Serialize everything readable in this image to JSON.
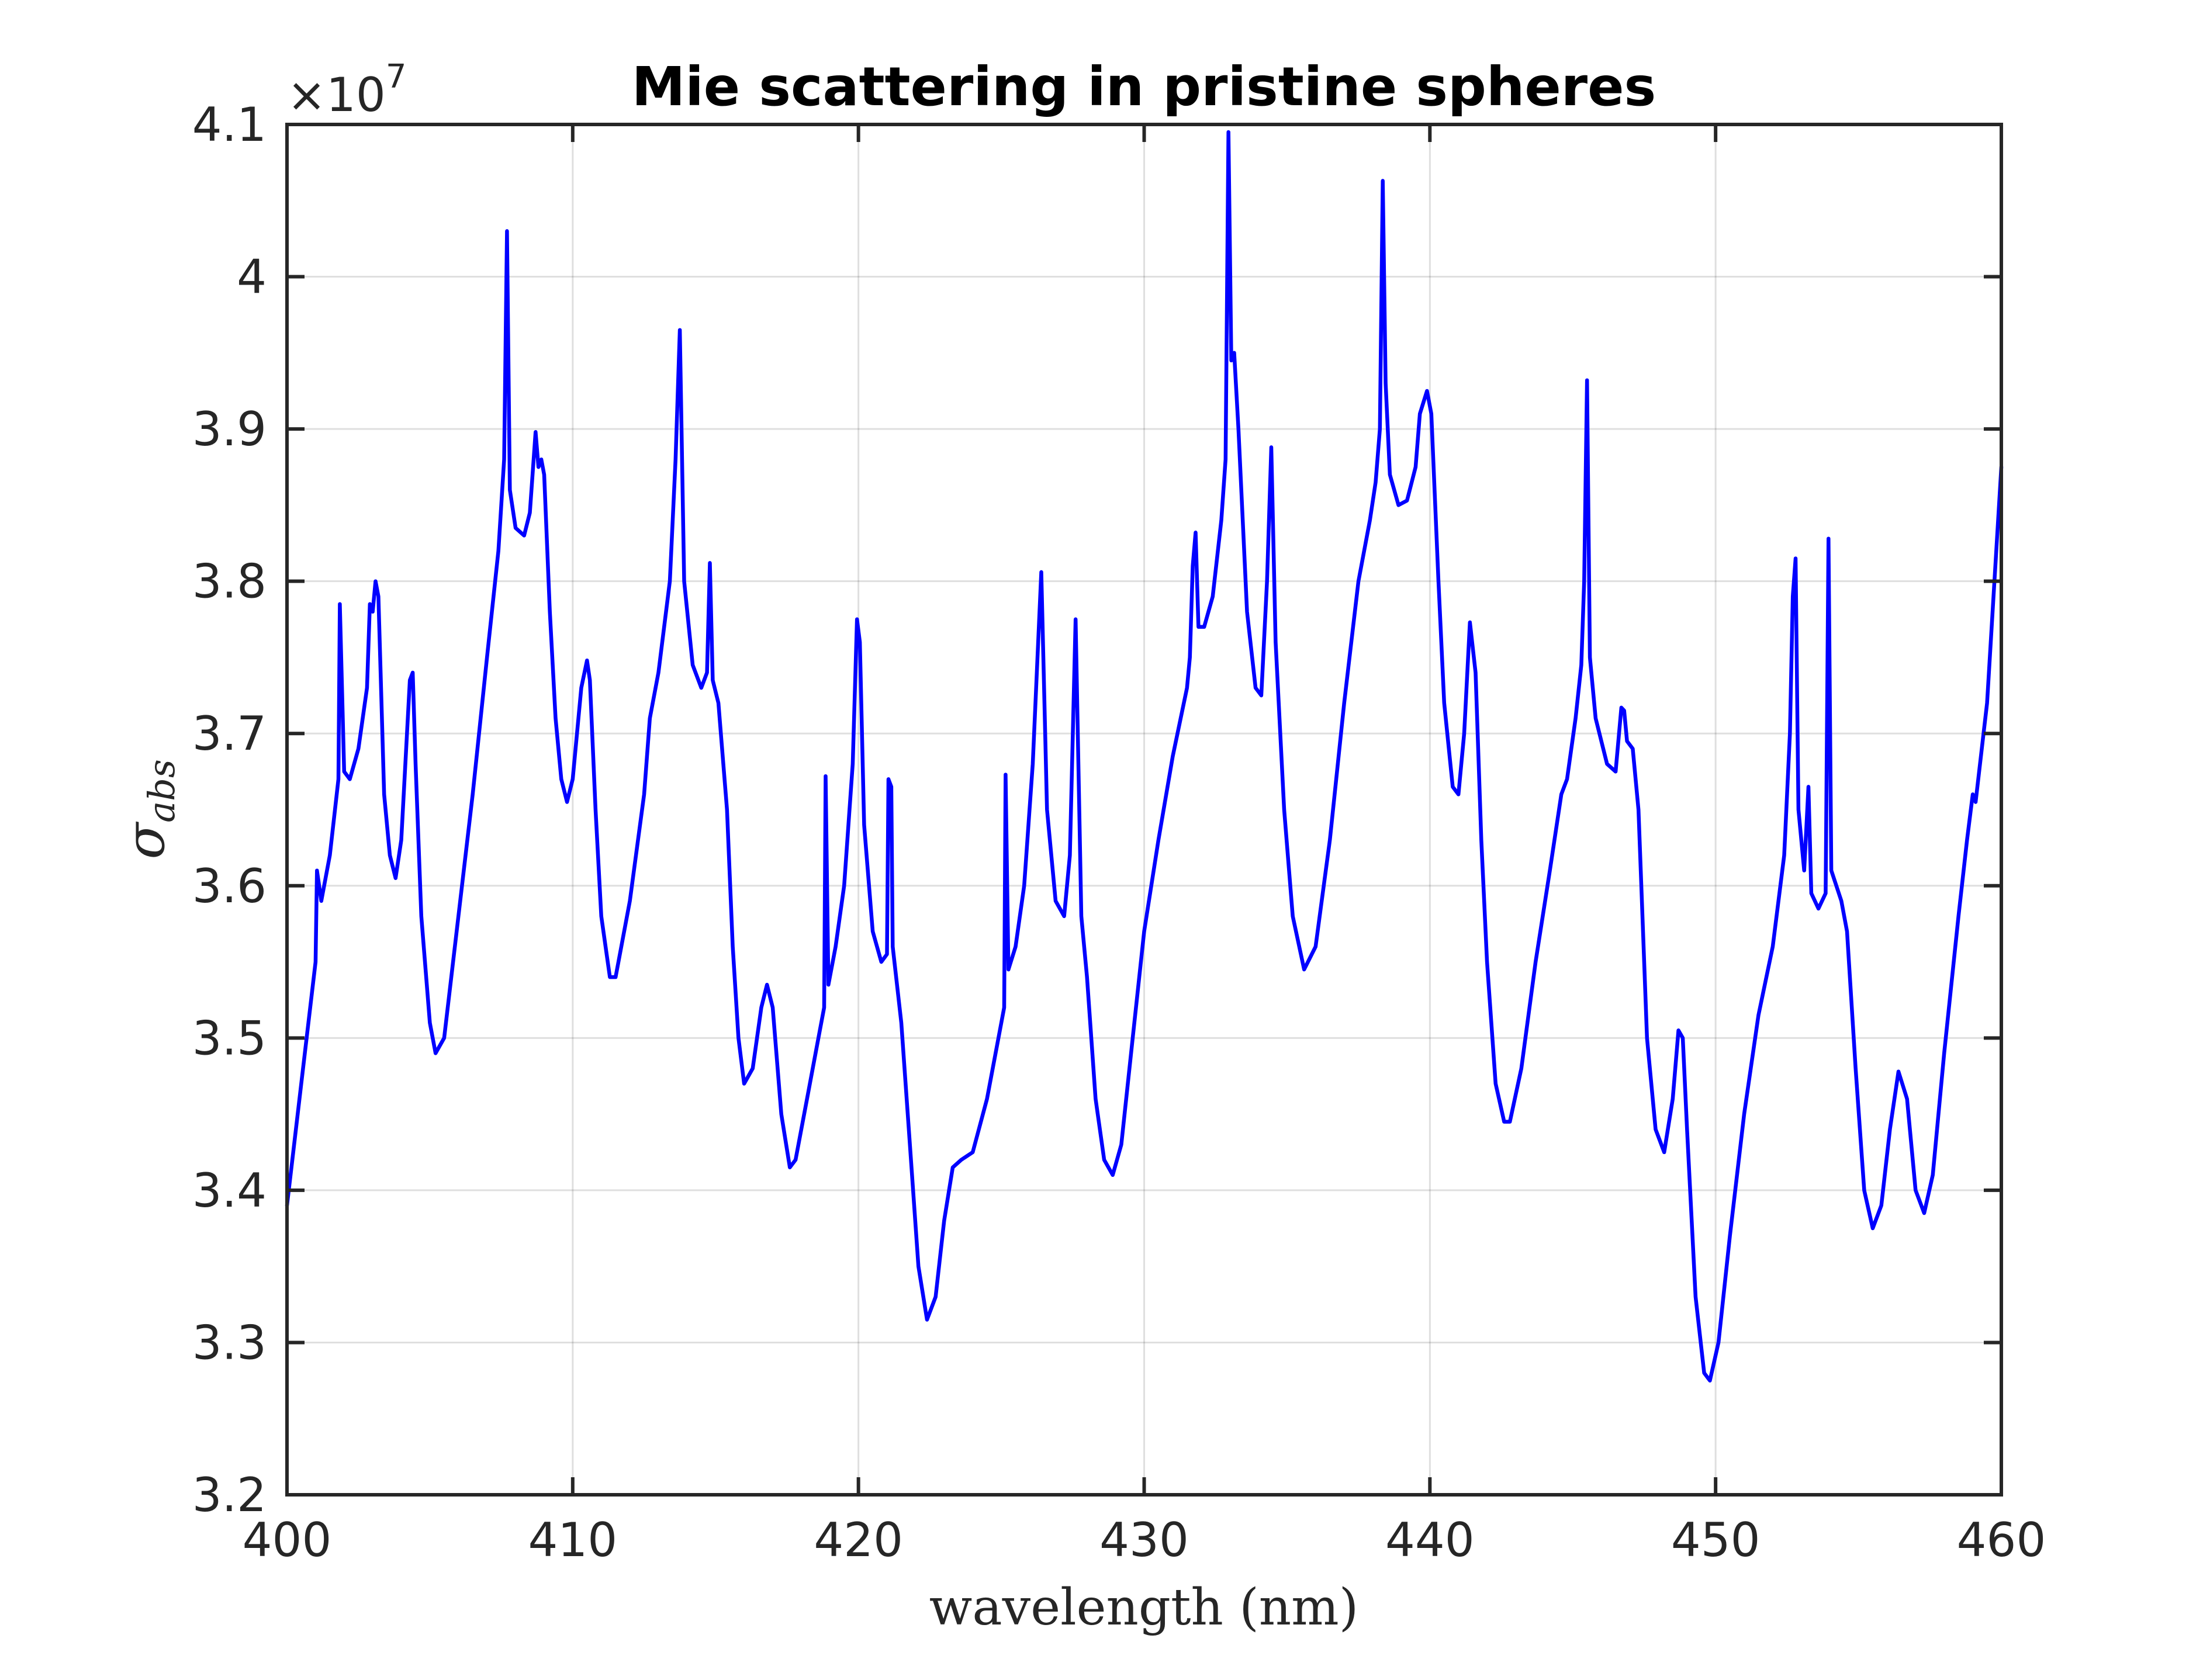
{
  "chart_data": {
    "type": "line",
    "title": "Mie scattering in pristine spheres",
    "xlabel": "wavelength (nm)",
    "ylabel": {
      "main": "σ",
      "subscript": "abs"
    },
    "y_multiplier": {
      "base": "×10",
      "exponent": "7"
    },
    "xlim": [
      400,
      460
    ],
    "ylim": [
      3.2,
      4.1
    ],
    "x_ticks": [
      400,
      410,
      420,
      430,
      440,
      450,
      460
    ],
    "x_tick_labels": [
      "400",
      "410",
      "420",
      "430",
      "440",
      "450",
      "460"
    ],
    "y_ticks": [
      3.2,
      3.3,
      3.4,
      3.5,
      3.6,
      3.7,
      3.8,
      3.9,
      4.0,
      4.1
    ],
    "y_tick_labels": [
      "3.2",
      "3.3",
      "3.4",
      "3.5",
      "3.6",
      "3.7",
      "3.8",
      "3.9",
      "4",
      "4.1"
    ],
    "grid": true,
    "series": [
      {
        "color": "#0000ff",
        "points": [
          [
            400.0,
            3.39
          ],
          [
            400.5,
            3.47
          ],
          [
            401.0,
            3.55
          ],
          [
            401.05,
            3.61
          ],
          [
            401.2,
            3.59
          ],
          [
            401.5,
            3.62
          ],
          [
            401.8,
            3.67
          ],
          [
            401.85,
            3.785
          ],
          [
            402.0,
            3.675
          ],
          [
            402.2,
            3.67
          ],
          [
            402.5,
            3.69
          ],
          [
            402.8,
            3.73
          ],
          [
            402.9,
            3.785
          ],
          [
            403.0,
            3.78
          ],
          [
            403.1,
            3.8
          ],
          [
            403.2,
            3.79
          ],
          [
            403.4,
            3.66
          ],
          [
            403.6,
            3.62
          ],
          [
            403.8,
            3.605
          ],
          [
            404.0,
            3.63
          ],
          [
            404.2,
            3.7
          ],
          [
            404.3,
            3.735
          ],
          [
            404.4,
            3.74
          ],
          [
            404.5,
            3.68
          ],
          [
            404.7,
            3.58
          ],
          [
            405.0,
            3.51
          ],
          [
            405.2,
            3.49
          ],
          [
            405.5,
            3.5
          ],
          [
            406.0,
            3.58
          ],
          [
            406.5,
            3.66
          ],
          [
            407.0,
            3.75
          ],
          [
            407.4,
            3.82
          ],
          [
            407.6,
            3.88
          ],
          [
            407.7,
            4.03
          ],
          [
            407.8,
            3.86
          ],
          [
            408.0,
            3.835
          ],
          [
            408.3,
            3.83
          ],
          [
            408.5,
            3.845
          ],
          [
            408.7,
            3.898
          ],
          [
            408.8,
            3.875
          ],
          [
            408.9,
            3.88
          ],
          [
            409.0,
            3.87
          ],
          [
            409.2,
            3.78
          ],
          [
            409.4,
            3.71
          ],
          [
            409.6,
            3.67
          ],
          [
            409.8,
            3.655
          ],
          [
            410.0,
            3.67
          ],
          [
            410.3,
            3.73
          ],
          [
            410.5,
            3.748
          ],
          [
            410.6,
            3.735
          ],
          [
            410.8,
            3.65
          ],
          [
            411.0,
            3.58
          ],
          [
            411.3,
            3.54
          ],
          [
            411.5,
            3.54
          ],
          [
            412.0,
            3.59
          ],
          [
            412.5,
            3.66
          ],
          [
            412.7,
            3.71
          ],
          [
            413.0,
            3.74
          ],
          [
            413.4,
            3.8
          ],
          [
            413.6,
            3.88
          ],
          [
            413.75,
            3.965
          ],
          [
            413.9,
            3.8
          ],
          [
            414.2,
            3.745
          ],
          [
            414.5,
            3.73
          ],
          [
            414.7,
            3.74
          ],
          [
            414.8,
            3.812
          ],
          [
            414.9,
            3.735
          ],
          [
            415.1,
            3.72
          ],
          [
            415.4,
            3.65
          ],
          [
            415.6,
            3.56
          ],
          [
            415.8,
            3.5
          ],
          [
            416.0,
            3.47
          ],
          [
            416.3,
            3.48
          ],
          [
            416.6,
            3.52
          ],
          [
            416.8,
            3.535
          ],
          [
            417.0,
            3.52
          ],
          [
            417.3,
            3.45
          ],
          [
            417.6,
            3.415
          ],
          [
            417.8,
            3.42
          ],
          [
            418.2,
            3.46
          ],
          [
            418.6,
            3.5
          ],
          [
            418.8,
            3.52
          ],
          [
            418.85,
            3.672
          ],
          [
            418.95,
            3.535
          ],
          [
            419.2,
            3.56
          ],
          [
            419.5,
            3.6
          ],
          [
            419.8,
            3.68
          ],
          [
            419.95,
            3.775
          ],
          [
            420.05,
            3.76
          ],
          [
            420.2,
            3.64
          ],
          [
            420.5,
            3.57
          ],
          [
            420.8,
            3.55
          ],
          [
            421.0,
            3.555
          ],
          [
            421.05,
            3.67
          ],
          [
            421.15,
            3.665
          ],
          [
            421.2,
            3.56
          ],
          [
            421.5,
            3.51
          ],
          [
            421.8,
            3.43
          ],
          [
            422.1,
            3.35
          ],
          [
            422.4,
            3.315
          ],
          [
            422.7,
            3.33
          ],
          [
            423.0,
            3.38
          ],
          [
            423.3,
            3.415
          ],
          [
            423.6,
            3.42
          ],
          [
            424.0,
            3.425
          ],
          [
            424.5,
            3.46
          ],
          [
            425.0,
            3.51
          ],
          [
            425.1,
            3.52
          ],
          [
            425.15,
            3.673
          ],
          [
            425.25,
            3.545
          ],
          [
            425.5,
            3.56
          ],
          [
            425.8,
            3.6
          ],
          [
            426.1,
            3.68
          ],
          [
            426.4,
            3.806
          ],
          [
            426.6,
            3.65
          ],
          [
            426.9,
            3.59
          ],
          [
            427.2,
            3.58
          ],
          [
            427.4,
            3.62
          ],
          [
            427.6,
            3.775
          ],
          [
            427.8,
            3.58
          ],
          [
            428.0,
            3.54
          ],
          [
            428.3,
            3.46
          ],
          [
            428.6,
            3.42
          ],
          [
            428.9,
            3.41
          ],
          [
            429.2,
            3.43
          ],
          [
            429.6,
            3.5
          ],
          [
            430.0,
            3.57
          ],
          [
            430.5,
            3.63
          ],
          [
            431.0,
            3.685
          ],
          [
            431.5,
            3.73
          ],
          [
            431.6,
            3.75
          ],
          [
            431.7,
            3.81
          ],
          [
            431.8,
            3.832
          ],
          [
            431.9,
            3.77
          ],
          [
            432.1,
            3.77
          ],
          [
            432.4,
            3.79
          ],
          [
            432.7,
            3.84
          ],
          [
            432.85,
            3.88
          ],
          [
            432.95,
            4.095
          ],
          [
            433.05,
            3.945
          ],
          [
            433.15,
            3.95
          ],
          [
            433.3,
            3.9
          ],
          [
            433.6,
            3.78
          ],
          [
            433.9,
            3.73
          ],
          [
            434.1,
            3.725
          ],
          [
            434.3,
            3.8
          ],
          [
            434.45,
            3.888
          ],
          [
            434.6,
            3.76
          ],
          [
            434.9,
            3.65
          ],
          [
            435.2,
            3.58
          ],
          [
            435.6,
            3.545
          ],
          [
            436.0,
            3.56
          ],
          [
            436.5,
            3.63
          ],
          [
            437.0,
            3.72
          ],
          [
            437.5,
            3.8
          ],
          [
            437.9,
            3.84
          ],
          [
            438.1,
            3.865
          ],
          [
            438.25,
            3.9
          ],
          [
            438.35,
            4.063
          ],
          [
            438.45,
            3.93
          ],
          [
            438.6,
            3.87
          ],
          [
            438.9,
            3.85
          ],
          [
            439.2,
            3.853
          ],
          [
            439.5,
            3.875
          ],
          [
            439.65,
            3.91
          ],
          [
            439.9,
            3.925
          ],
          [
            440.05,
            3.91
          ],
          [
            440.3,
            3.8
          ],
          [
            440.5,
            3.72
          ],
          [
            440.8,
            3.665
          ],
          [
            441.0,
            3.66
          ],
          [
            441.2,
            3.7
          ],
          [
            441.4,
            3.773
          ],
          [
            441.6,
            3.74
          ],
          [
            441.8,
            3.63
          ],
          [
            442.0,
            3.55
          ],
          [
            442.3,
            3.47
          ],
          [
            442.6,
            3.445
          ],
          [
            442.8,
            3.445
          ],
          [
            443.2,
            3.48
          ],
          [
            443.7,
            3.55
          ],
          [
            444.2,
            3.61
          ],
          [
            444.6,
            3.66
          ],
          [
            444.8,
            3.67
          ],
          [
            445.1,
            3.71
          ],
          [
            445.3,
            3.745
          ],
          [
            445.4,
            3.8
          ],
          [
            445.5,
            3.932
          ],
          [
            445.6,
            3.75
          ],
          [
            445.8,
            3.71
          ],
          [
            446.2,
            3.68
          ],
          [
            446.5,
            3.675
          ],
          [
            446.7,
            3.717
          ],
          [
            446.8,
            3.715
          ],
          [
            446.9,
            3.695
          ],
          [
            447.1,
            3.69
          ],
          [
            447.3,
            3.65
          ],
          [
            447.6,
            3.5
          ],
          [
            447.9,
            3.44
          ],
          [
            448.2,
            3.425
          ],
          [
            448.5,
            3.46
          ],
          [
            448.7,
            3.505
          ],
          [
            448.85,
            3.5
          ],
          [
            449.0,
            3.44
          ],
          [
            449.3,
            3.33
          ],
          [
            449.6,
            3.28
          ],
          [
            449.8,
            3.275
          ],
          [
            450.1,
            3.3
          ],
          [
            450.5,
            3.37
          ],
          [
            451.0,
            3.45
          ],
          [
            451.5,
            3.515
          ],
          [
            452.0,
            3.56
          ],
          [
            452.4,
            3.62
          ],
          [
            452.6,
            3.7
          ],
          [
            452.7,
            3.79
          ],
          [
            452.8,
            3.815
          ],
          [
            452.9,
            3.65
          ],
          [
            453.1,
            3.61
          ],
          [
            453.25,
            3.665
          ],
          [
            453.35,
            3.595
          ],
          [
            453.6,
            3.585
          ],
          [
            453.85,
            3.595
          ],
          [
            453.95,
            3.828
          ],
          [
            454.05,
            3.61
          ],
          [
            454.4,
            3.59
          ],
          [
            454.6,
            3.57
          ],
          [
            454.9,
            3.48
          ],
          [
            455.2,
            3.4
          ],
          [
            455.5,
            3.375
          ],
          [
            455.8,
            3.39
          ],
          [
            456.1,
            3.44
          ],
          [
            456.4,
            3.478
          ],
          [
            456.7,
            3.46
          ],
          [
            457.0,
            3.4
          ],
          [
            457.3,
            3.385
          ],
          [
            457.6,
            3.41
          ],
          [
            458.0,
            3.49
          ],
          [
            458.5,
            3.58
          ],
          [
            458.8,
            3.63
          ],
          [
            459.0,
            3.66
          ],
          [
            459.1,
            3.655
          ],
          [
            459.5,
            3.72
          ],
          [
            460.0,
            3.875
          ]
        ]
      }
    ]
  }
}
